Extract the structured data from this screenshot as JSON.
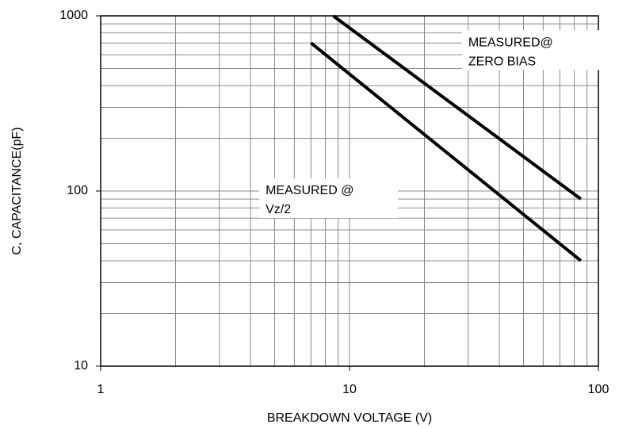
{
  "chart_data": {
    "type": "line",
    "xlabel": "BREAKDOWN VOLTAGE (V)",
    "ylabel": "C, CAPACITANCE(pF)",
    "log_x": true,
    "log_y": true,
    "grid": true,
    "minor_grid": true,
    "xlim": [
      1,
      100
    ],
    "xticks": [
      1,
      10,
      100
    ],
    "ylim": [
      10,
      1000
    ],
    "yticks": [
      10,
      100,
      1000
    ],
    "series": [
      {
        "name": "MEASURED@ ZERO BIAS",
        "color": "#000000",
        "x": [
          8.6,
          85
        ],
        "values": [
          1000,
          90
        ]
      },
      {
        "name": "MEASURED @ Vz/2",
        "color": "#000000",
        "x": [
          7,
          85
        ],
        "values": [
          700,
          40
        ]
      }
    ],
    "annotations": [
      {
        "lines": [
          "MEASURED@",
          "ZERO BIAS"
        ],
        "x": 30,
        "y": 700
      },
      {
        "lines": [
          "MEASURED @",
          "Vz/2"
        ],
        "x": 4.6,
        "y": 100
      }
    ]
  }
}
